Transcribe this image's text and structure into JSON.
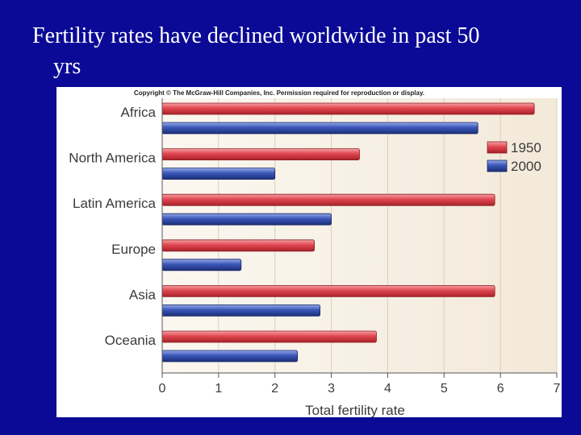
{
  "slide": {
    "title_line1": "Fertility rates have declined worldwide in past 50",
    "title_line2": "yrs"
  },
  "figure": {
    "copyright": "Copyright © The McGraw-Hill Companies, Inc. Permission required for reproduction or display."
  },
  "colors": {
    "slide_background": "#0a0a96",
    "plot_background": "#f6efe4",
    "series_1950": "#e0464f",
    "series_2000": "#3a56b8"
  },
  "chart_data": {
    "type": "bar",
    "orientation": "horizontal",
    "title": "",
    "xlabel": "Total fertility rate",
    "ylabel": "",
    "xlim": [
      0,
      7
    ],
    "xticks": [
      "0",
      "1",
      "2",
      "3",
      "4",
      "5",
      "6",
      "7"
    ],
    "grid": "vertical",
    "legend_position": "top-right",
    "categories": [
      "Africa",
      "North America",
      "Latin America",
      "Europe",
      "Asia",
      "Oceania"
    ],
    "series": [
      {
        "name": "1950",
        "values": [
          6.6,
          3.5,
          5.9,
          2.7,
          5.9,
          3.8
        ]
      },
      {
        "name": "2000",
        "values": [
          5.6,
          2.0,
          3.0,
          1.4,
          2.8,
          2.4
        ]
      }
    ]
  }
}
